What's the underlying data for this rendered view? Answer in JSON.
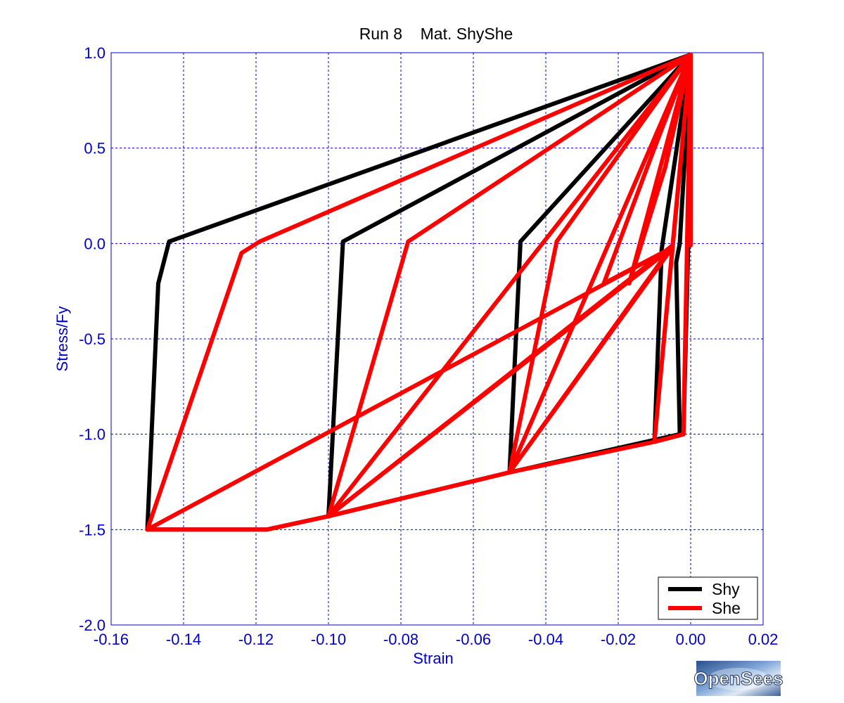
{
  "chart_data": {
    "type": "line",
    "title": "Run 8    Mat. ShyShe",
    "xlabel": "Strain",
    "ylabel": "Stress/Fy",
    "xlim": [
      -0.16,
      0.02
    ],
    "ylim": [
      -2.0,
      1.0
    ],
    "xticks": [
      -0.16,
      -0.14,
      -0.12,
      -0.1,
      -0.08,
      -0.06,
      -0.04,
      -0.02,
      0.0,
      0.02
    ],
    "xtick_labels": [
      "-0.16",
      "-0.14",
      "-0.12",
      "-0.10",
      "-0.08",
      "-0.06",
      "-0.04",
      "-0.02",
      "0.00",
      "0.02"
    ],
    "yticks": [
      1.0,
      0.5,
      0.0,
      -0.5,
      -1.0,
      -1.5,
      -2.0
    ],
    "ytick_labels": [
      "1.0",
      "0.5",
      "0.0",
      "-0.5",
      "-1.0",
      "-1.5",
      "-2.0"
    ],
    "grid": true,
    "legend_position": "bottom-right",
    "series": [
      {
        "name": "Shy",
        "color": "#000000",
        "points": [
          [
            0,
            0
          ],
          [
            0.0,
            0.99
          ],
          [
            -0.144,
            0.01
          ],
          [
            -0.147,
            -0.21
          ],
          [
            -0.15,
            -1.5
          ],
          [
            -0.117,
            -1.5
          ],
          [
            -0.1,
            -1.43
          ],
          [
            -0.05,
            -1.2
          ],
          [
            -0.003,
            -1.0
          ],
          [
            -0.004,
            -0.1
          ],
          [
            -0.003,
            0.0
          ],
          [
            0.0,
            0.99
          ],
          [
            -0.096,
            0.01
          ],
          [
            -0.1,
            -1.43
          ],
          [
            -0.05,
            -1.2
          ],
          [
            -0.047,
            0.01
          ],
          [
            0.0,
            0.99
          ],
          [
            -0.008,
            -0.03
          ],
          [
            -0.01,
            -1.04
          ],
          [
            -0.002,
            -1.0
          ],
          [
            0.0,
            0.5
          ],
          [
            0.0,
            0.99
          ]
        ]
      },
      {
        "name": "She",
        "color": "#ff0000",
        "points": [
          [
            0,
            0
          ],
          [
            0.0,
            0.99
          ],
          [
            -0.119,
            0.01
          ],
          [
            -0.124,
            -0.05
          ],
          [
            -0.15,
            -1.5
          ],
          [
            -0.005,
            -0.02
          ],
          [
            -0.1,
            -1.43
          ],
          [
            0.0,
            0.99
          ],
          [
            -0.078,
            0.01
          ],
          [
            -0.1,
            -1.43
          ],
          [
            -0.005,
            -0.01
          ],
          [
            -0.05,
            -1.2
          ],
          [
            0.0,
            0.99
          ],
          [
            -0.037,
            0.01
          ],
          [
            -0.05,
            -1.2
          ],
          [
            -0.005,
            -0.02
          ],
          [
            -0.024,
            -0.21
          ],
          [
            -0.01,
            0.5
          ],
          [
            0.0,
            0.99
          ],
          [
            -0.017,
            -0.21
          ],
          [
            -0.007,
            0.4
          ],
          [
            0.0,
            0.99
          ],
          [
            -0.01,
            -1.04
          ],
          [
            -0.005,
            -0.01
          ],
          [
            0.0,
            0.99
          ],
          [
            -0.002,
            -1.0
          ],
          [
            0.0,
            0.99
          ],
          [
            0.0,
            -0.01
          ]
        ]
      },
      {
        "name": "",
        "color": "#ff0000",
        "points": [
          [
            -0.15,
            -1.5
          ],
          [
            -0.117,
            -1.5
          ],
          [
            -0.1,
            -1.43
          ],
          [
            -0.05,
            -1.2
          ],
          [
            -0.01,
            -1.04
          ],
          [
            -0.002,
            -1.0
          ]
        ]
      }
    ]
  },
  "legend": {
    "items": [
      {
        "label": "Shy",
        "color": "#000000"
      },
      {
        "label": "She",
        "color": "#ff0000"
      }
    ]
  },
  "logo": {
    "text": "OpenSees"
  },
  "colors": {
    "axis": "#0000cc",
    "grid": "#0000cc",
    "background": "#ffffff"
  }
}
